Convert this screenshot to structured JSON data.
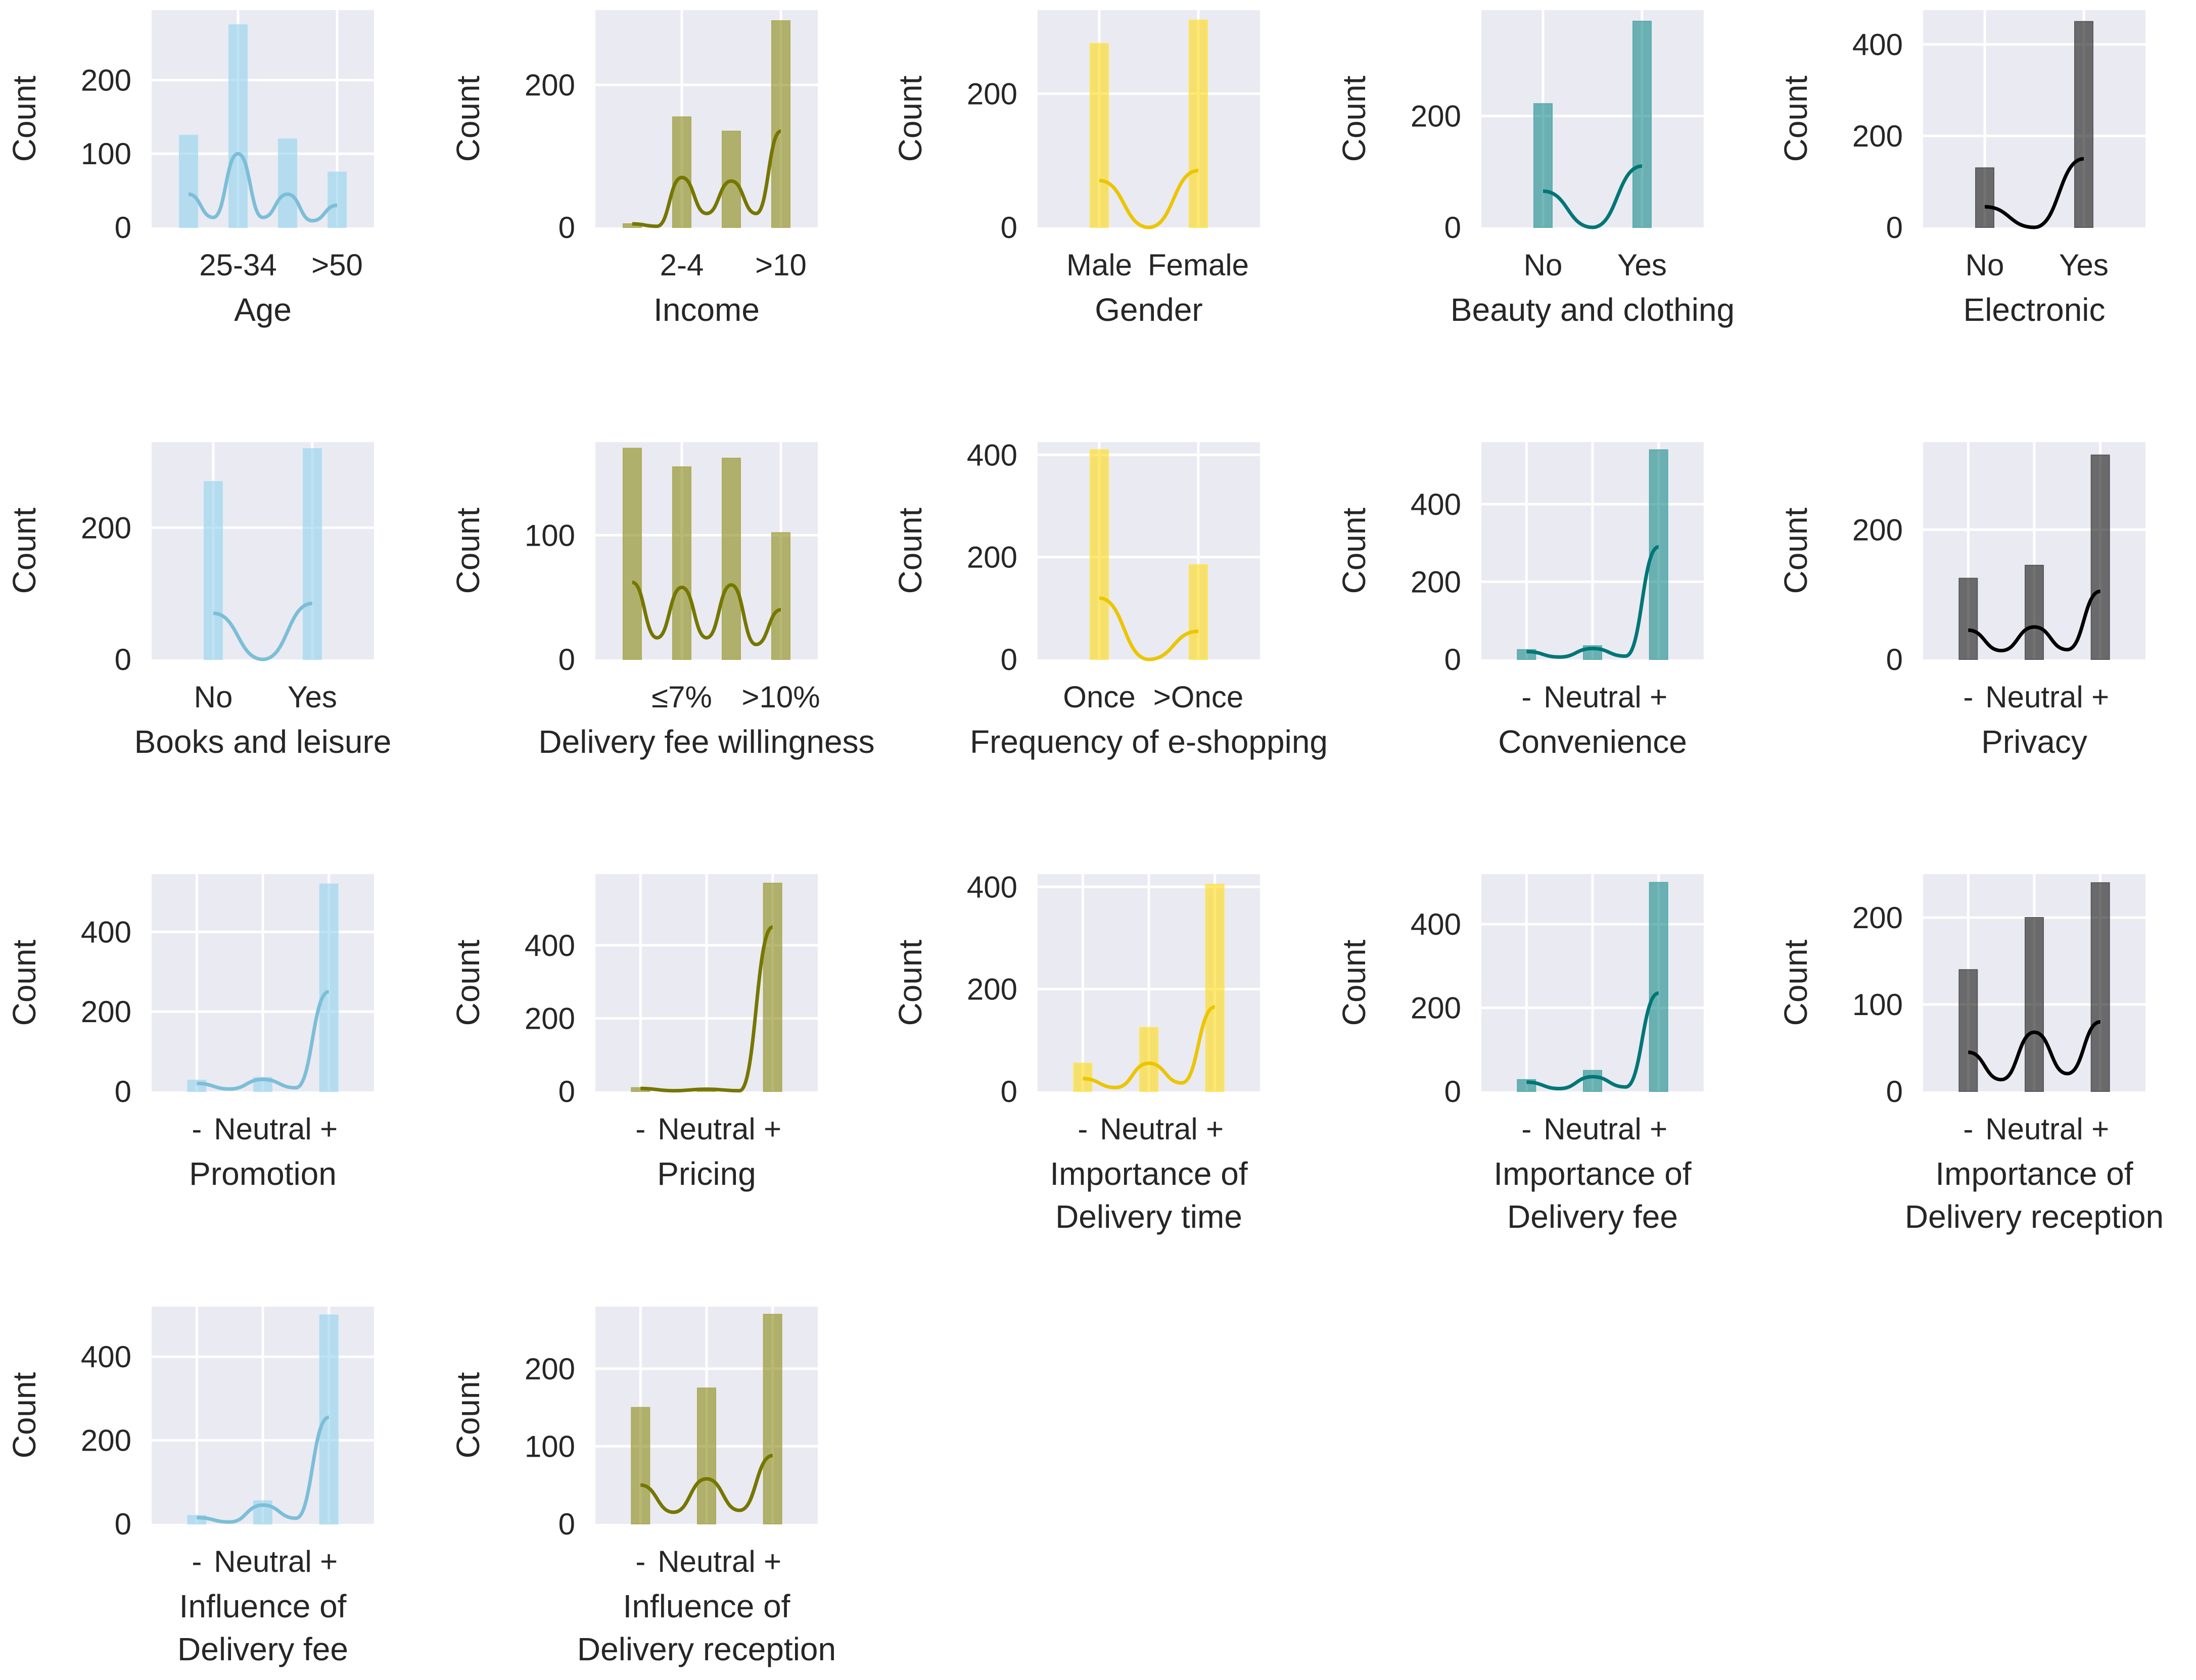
{
  "figure": {
    "background": "#ffffff",
    "plot_background": "#eaeaf2",
    "grid_color": "#ffffff",
    "text_color": "#262626",
    "palette": [
      "#87ceeb",
      "#808000",
      "#ffd700",
      "#008080",
      "#000000"
    ]
  },
  "chart_data": [
    {
      "type": "histogram_kde",
      "color": "#87ceeb",
      "xlabel": [
        "Age"
      ],
      "ylabel": "Count",
      "n_bins": 4,
      "bar_values": [
        125,
        275,
        120,
        75
      ],
      "xticks": [
        {
          "bin": 1,
          "label": "25-34"
        },
        {
          "bin": 3,
          "label": ">50"
        }
      ],
      "ylim": [
        0,
        295
      ],
      "yticks": [
        0,
        100,
        200
      ],
      "kde": [
        45,
        100,
        45,
        30
      ]
    },
    {
      "type": "histogram_kde",
      "color": "#808000",
      "xlabel": [
        "Income"
      ],
      "ylabel": "Count",
      "n_bins": 4,
      "bar_values": [
        5,
        155,
        135,
        290
      ],
      "xticks": [
        {
          "bin": 1,
          "label": "2-4"
        },
        {
          "bin": 3,
          "label": ">10"
        }
      ],
      "ylim": [
        0,
        305
      ],
      "yticks": [
        0,
        200
      ],
      "kde": [
        5,
        70,
        65,
        135
      ]
    },
    {
      "type": "histogram_kde",
      "color": "#ffd700",
      "xlabel": [
        "Gender"
      ],
      "ylabel": "Count",
      "n_bins": 2,
      "bar_values": [
        275,
        310
      ],
      "xticks": [
        {
          "bin": 0,
          "label": "Male"
        },
        {
          "bin": 1,
          "label": "Female"
        }
      ],
      "ylim": [
        0,
        325
      ],
      "yticks": [
        0,
        200
      ],
      "kde": [
        70,
        85
      ]
    },
    {
      "type": "histogram_kde",
      "color": "#008080",
      "xlabel": [
        "Beauty and clothing"
      ],
      "ylabel": "Count",
      "n_bins": 2,
      "bar_values": [
        222,
        370
      ],
      "xticks": [
        {
          "bin": 0,
          "label": "No"
        },
        {
          "bin": 1,
          "label": "Yes"
        }
      ],
      "ylim": [
        0,
        390
      ],
      "yticks": [
        0,
        200
      ],
      "kde": [
        65,
        110
      ]
    },
    {
      "type": "histogram_kde",
      "color": "#000000",
      "xlabel": [
        "Electronic"
      ],
      "ylabel": "Count",
      "n_bins": 2,
      "bar_values": [
        130,
        450
      ],
      "xticks": [
        {
          "bin": 0,
          "label": "No"
        },
        {
          "bin": 1,
          "label": "Yes"
        }
      ],
      "ylim": [
        0,
        475
      ],
      "yticks": [
        0,
        200,
        400
      ],
      "kde": [
        45,
        150
      ]
    },
    {
      "type": "histogram_kde",
      "color": "#87ceeb",
      "xlabel": [
        "Books and leisure"
      ],
      "ylabel": "Count",
      "n_bins": 2,
      "bar_values": [
        270,
        320
      ],
      "xticks": [
        {
          "bin": 0,
          "label": "No"
        },
        {
          "bin": 1,
          "label": "Yes"
        }
      ],
      "ylim": [
        0,
        330
      ],
      "yticks": [
        0,
        200
      ],
      "kde": [
        70,
        85
      ]
    },
    {
      "type": "histogram_kde",
      "color": "#808000",
      "xlabel": [
        "Delivery fee willingness"
      ],
      "ylabel": "Count",
      "n_bins": 4,
      "bar_values": [
        170,
        155,
        162,
        102
      ],
      "xticks": [
        {
          "bin": 1,
          "label": "≤7%"
        },
        {
          "bin": 3,
          "label": ">10%"
        }
      ],
      "ylim": [
        0,
        175
      ],
      "yticks": [
        0,
        100
      ],
      "kde": [
        62,
        58,
        60,
        40
      ]
    },
    {
      "type": "histogram_kde",
      "color": "#ffd700",
      "xlabel": [
        "Frequency of e-shopping"
      ],
      "ylabel": "Count",
      "n_bins": 2,
      "bar_values": [
        410,
        185
      ],
      "xticks": [
        {
          "bin": 0,
          "label": "Once"
        },
        {
          "bin": 1,
          "label": ">Once"
        }
      ],
      "ylim": [
        0,
        425
      ],
      "yticks": [
        0,
        200,
        400
      ],
      "kde": [
        120,
        55
      ]
    },
    {
      "type": "histogram_kde",
      "color": "#008080",
      "xlabel": [
        "Convenience"
      ],
      "ylabel": "Count",
      "n_bins": 3,
      "bar_values": [
        25,
        35,
        540
      ],
      "xticks": [
        {
          "bin": 0,
          "label": "-"
        },
        {
          "bin": 1,
          "label": "Neutral"
        },
        {
          "bin": 2,
          "label": "+"
        }
      ],
      "ylim": [
        0,
        560
      ],
      "yticks": [
        0,
        200,
        400
      ],
      "kde": [
        20,
        28,
        290
      ]
    },
    {
      "type": "histogram_kde",
      "color": "#000000",
      "xlabel": [
        "Privacy"
      ],
      "ylabel": "Count",
      "n_bins": 3,
      "bar_values": [
        125,
        145,
        315
      ],
      "xticks": [
        {
          "bin": 0,
          "label": "-"
        },
        {
          "bin": 1,
          "label": "Neutral"
        },
        {
          "bin": 2,
          "label": "+"
        }
      ],
      "ylim": [
        0,
        335
      ],
      "yticks": [
        0,
        200
      ],
      "kde": [
        45,
        50,
        105
      ]
    },
    {
      "type": "histogram_kde",
      "color": "#87ceeb",
      "xlabel": [
        "Promotion"
      ],
      "ylabel": "Count",
      "n_bins": 3,
      "bar_values": [
        28,
        35,
        520
      ],
      "xticks": [
        {
          "bin": 0,
          "label": "-"
        },
        {
          "bin": 1,
          "label": "Neutral"
        },
        {
          "bin": 2,
          "label": "+"
        }
      ],
      "ylim": [
        0,
        545
      ],
      "yticks": [
        0,
        200,
        400
      ],
      "kde": [
        20,
        30,
        250
      ]
    },
    {
      "type": "histogram_kde",
      "color": "#808000",
      "xlabel": [
        "Pricing"
      ],
      "ylabel": "Count",
      "n_bins": 3,
      "bar_values": [
        10,
        8,
        570
      ],
      "xticks": [
        {
          "bin": 0,
          "label": "-"
        },
        {
          "bin": 1,
          "label": "Neutral"
        },
        {
          "bin": 2,
          "label": "+"
        }
      ],
      "ylim": [
        0,
        595
      ],
      "yticks": [
        0,
        200,
        400
      ],
      "kde": [
        8,
        6,
        450
      ]
    },
    {
      "type": "histogram_kde",
      "color": "#ffd700",
      "xlabel": [
        "Importance of",
        "Delivery time"
      ],
      "ylabel": "Count",
      "n_bins": 3,
      "bar_values": [
        55,
        125,
        405
      ],
      "xticks": [
        {
          "bin": 0,
          "label": "-"
        },
        {
          "bin": 1,
          "label": "Neutral"
        },
        {
          "bin": 2,
          "label": "+"
        }
      ],
      "ylim": [
        0,
        425
      ],
      "yticks": [
        0,
        200,
        400
      ],
      "kde": [
        25,
        55,
        165
      ]
    },
    {
      "type": "histogram_kde",
      "color": "#008080",
      "xlabel": [
        "Importance of",
        "Delivery fee"
      ],
      "ylabel": "Count",
      "n_bins": 3,
      "bar_values": [
        28,
        50,
        500
      ],
      "xticks": [
        {
          "bin": 0,
          "label": "-"
        },
        {
          "bin": 1,
          "label": "Neutral"
        },
        {
          "bin": 2,
          "label": "+"
        }
      ],
      "ylim": [
        0,
        520
      ],
      "yticks": [
        0,
        200,
        400
      ],
      "kde": [
        22,
        35,
        235
      ]
    },
    {
      "type": "histogram_kde",
      "color": "#000000",
      "xlabel": [
        "Importance of",
        "Delivery reception"
      ],
      "ylabel": "Count",
      "n_bins": 3,
      "bar_values": [
        140,
        200,
        240
      ],
      "xticks": [
        {
          "bin": 0,
          "label": "-"
        },
        {
          "bin": 1,
          "label": "Neutral"
        },
        {
          "bin": 2,
          "label": "+"
        }
      ],
      "ylim": [
        0,
        250
      ],
      "yticks": [
        0,
        100,
        200
      ],
      "kde": [
        45,
        68,
        80
      ]
    },
    {
      "type": "histogram_kde",
      "color": "#87ceeb",
      "xlabel": [
        "Influence of",
        "Delivery fee"
      ],
      "ylabel": "Count",
      "n_bins": 3,
      "bar_values": [
        20,
        55,
        500
      ],
      "xticks": [
        {
          "bin": 0,
          "label": "-"
        },
        {
          "bin": 1,
          "label": "Neutral"
        },
        {
          "bin": 2,
          "label": "+"
        }
      ],
      "ylim": [
        0,
        520
      ],
      "yticks": [
        0,
        200,
        400
      ],
      "kde": [
        15,
        45,
        255
      ]
    },
    {
      "type": "histogram_kde",
      "color": "#808000",
      "xlabel": [
        "Influence of",
        "Delivery reception"
      ],
      "ylabel": "Count",
      "n_bins": 3,
      "bar_values": [
        150,
        175,
        270
      ],
      "xticks": [
        {
          "bin": 0,
          "label": "-"
        },
        {
          "bin": 1,
          "label": "Neutral"
        },
        {
          "bin": 2,
          "label": "+"
        }
      ],
      "ylim": [
        0,
        280
      ],
      "yticks": [
        0,
        100,
        200
      ],
      "kde": [
        50,
        58,
        88
      ]
    }
  ]
}
